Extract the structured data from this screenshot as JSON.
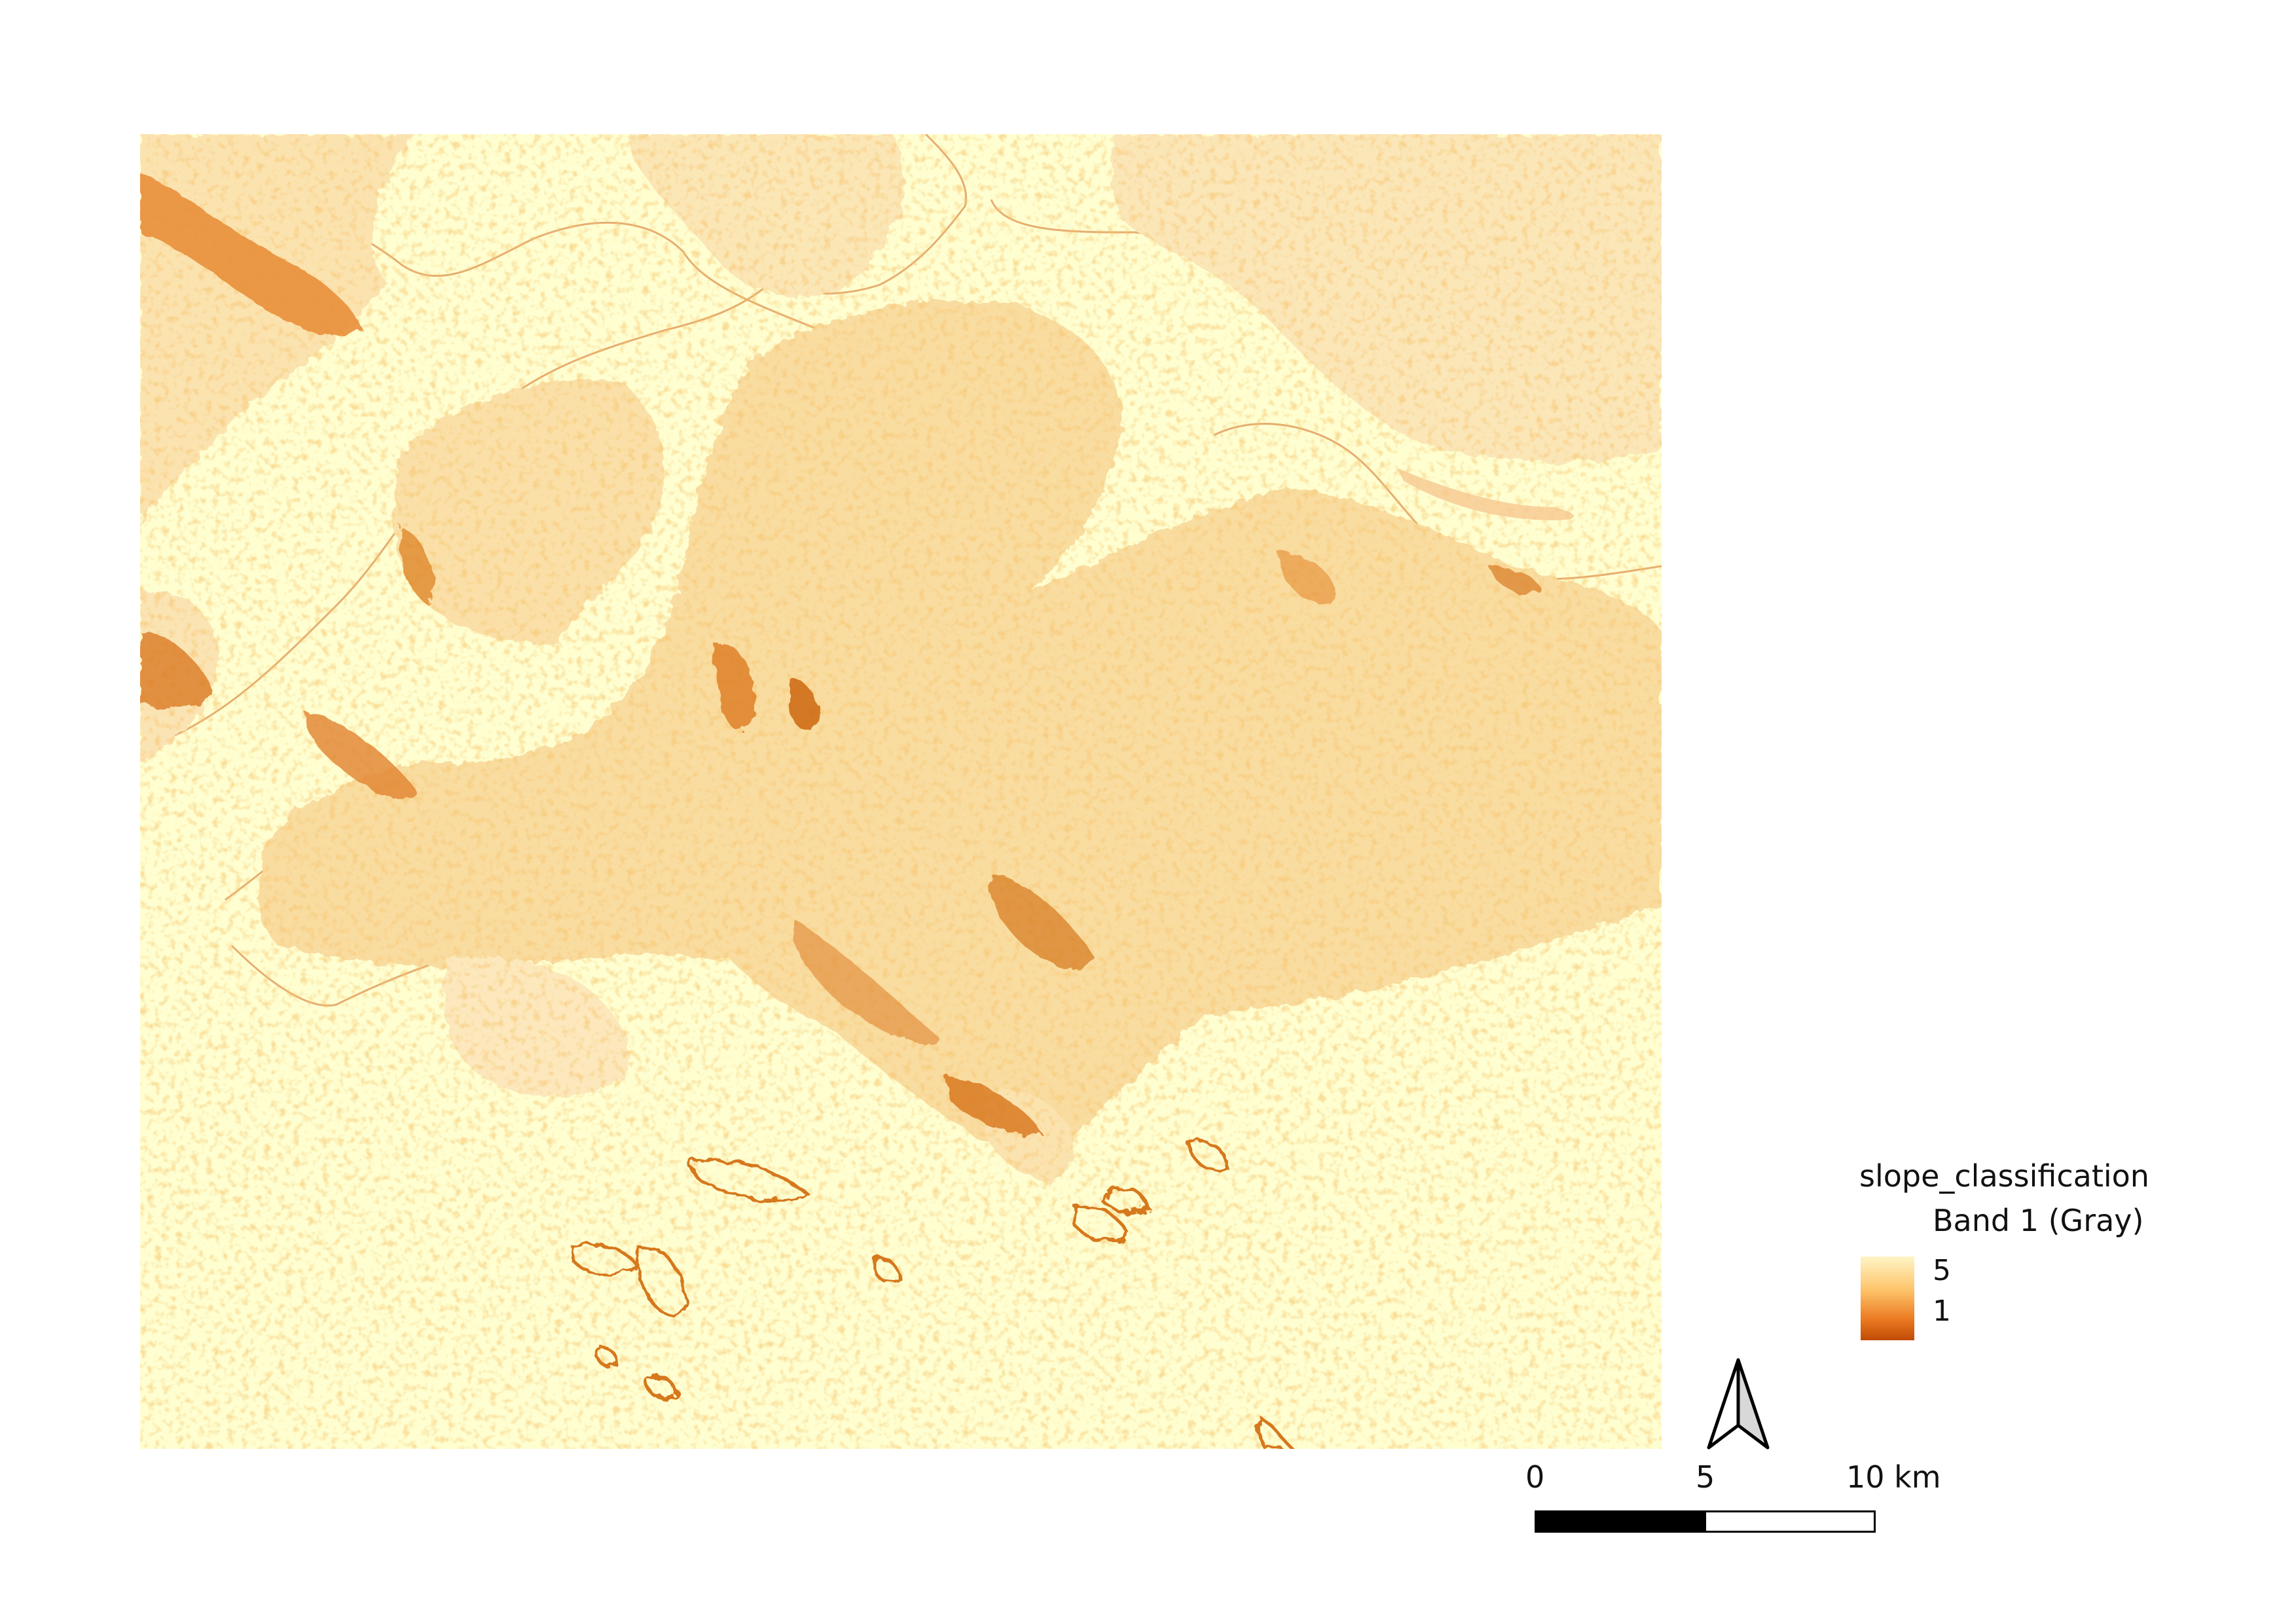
{
  "map": {
    "layer_name": "slope_classification",
    "renderer": "singleband pseudocolor",
    "colors": {
      "background": "#fefed0",
      "light": "#f9d99a",
      "medium": "#f0a44c",
      "dark": "#d2660e",
      "darkest": "#a8450a"
    }
  },
  "legend": {
    "title": "slope_classification",
    "band": "Band 1 (Gray)",
    "max_label": "5",
    "min_label": "1",
    "ramp": [
      "#fff5c6",
      "#fdc46a",
      "#ec7a22",
      "#c04a05"
    ]
  },
  "north_arrow": {
    "icon": "north-arrow-icon"
  },
  "scale_bar": {
    "labels": [
      "0",
      "5",
      "10 km"
    ],
    "segment_colors": [
      "#000000",
      "#ffffff"
    ]
  }
}
